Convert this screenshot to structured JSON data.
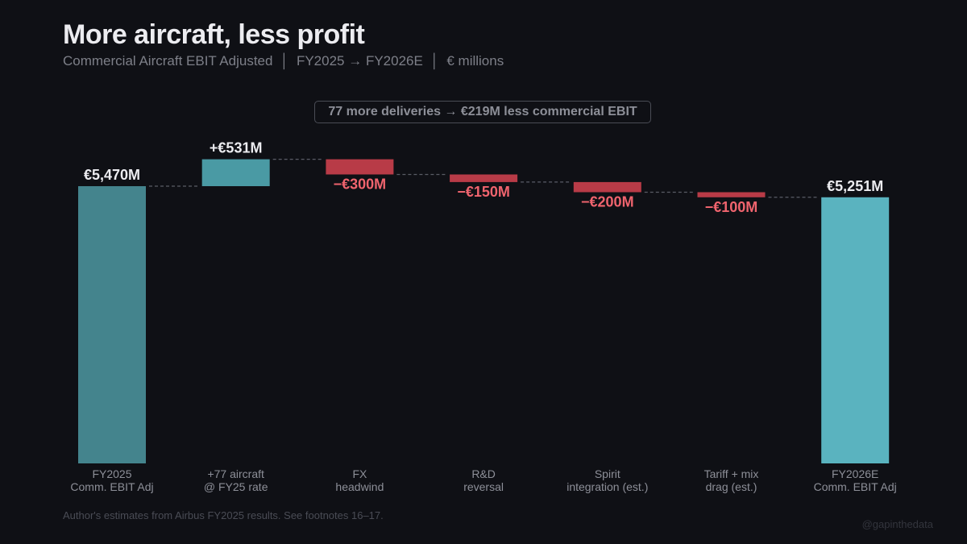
{
  "title": "More aircraft, less profit",
  "subtitle": "Commercial Aircraft EBIT Adjusted  │  FY2025 → FY2026E  │  € millions",
  "annotation": "77 more deliveries → €219M less commercial EBIT",
  "footer": "Author's estimates from Airbus FY2025 results. See footnotes 16–17.",
  "credit": "@gapinthedata",
  "colors": {
    "start": "#44848d",
    "increase": "#4a9aa4",
    "decrease": "#b83b47",
    "end": "#5ab3bf",
    "decrease_label": "#f0646e",
    "total_label": "#ececf0",
    "connector": "#5a5c66",
    "tick": "#8d8f98"
  },
  "chart_data": {
    "type": "waterfall",
    "ylim": [
      0,
      6001
    ],
    "categories": [
      [
        "FY2025",
        "Comm. EBIT Adj"
      ],
      [
        "+77 aircraft",
        "@ FY25 rate"
      ],
      [
        "FX",
        "headwind"
      ],
      [
        "R&D",
        "reversal"
      ],
      [
        "Spirit",
        "integration (est.)"
      ],
      [
        "Tariff + mix",
        "drag (est.)"
      ],
      [
        "FY2026E",
        "Comm. EBIT Adj"
      ]
    ],
    "kinds": [
      "start",
      "increase",
      "decrease",
      "decrease",
      "decrease",
      "decrease",
      "end"
    ],
    "values": [
      5470,
      531,
      -300,
      -150,
      -200,
      -100,
      5251
    ],
    "labels": [
      "€5,470M",
      "+€531M",
      "−€300M",
      "−€150M",
      "−€200M",
      "−€100M",
      "€5,251M"
    ]
  }
}
